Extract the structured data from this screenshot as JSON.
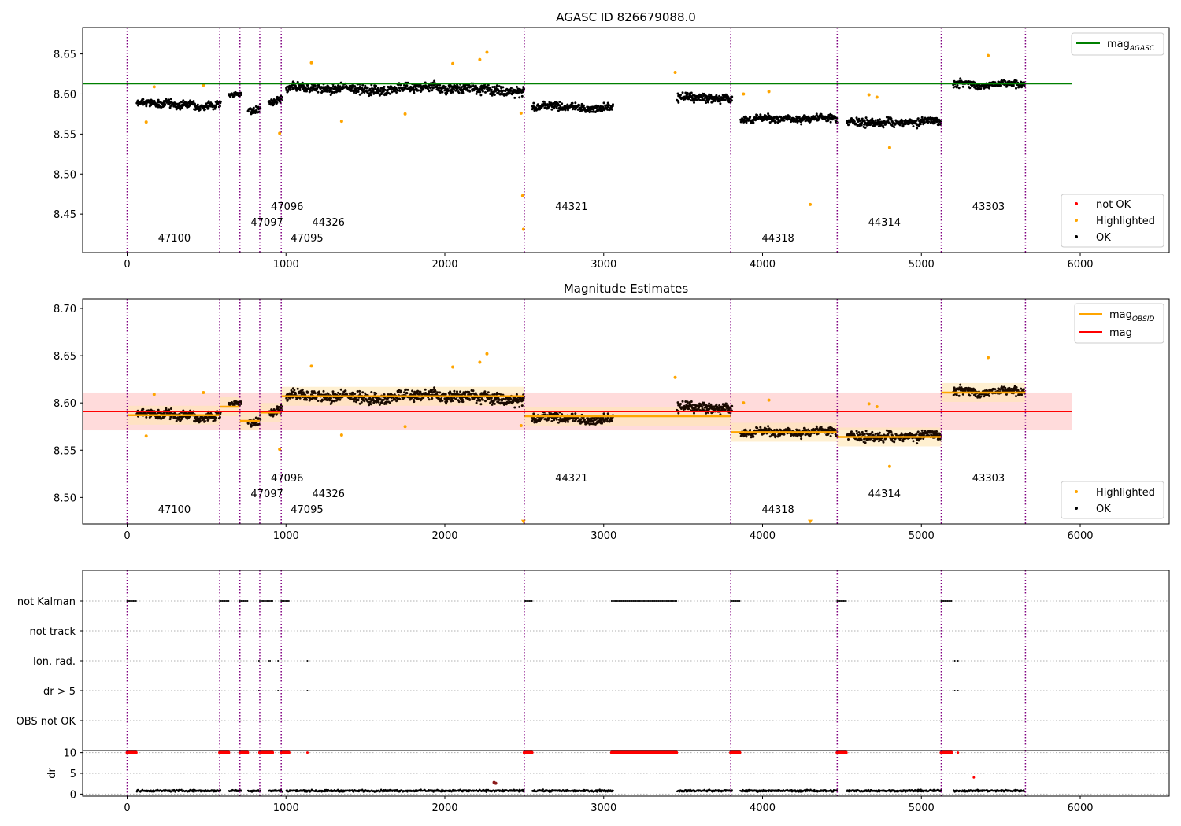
{
  "colors": {
    "ok": "#000000",
    "highlighted": "#ffa500",
    "not_ok": "#ff0000",
    "agasc_line": "#008000",
    "mag_line": "#ff0000",
    "mag_band": "#ffcccc",
    "obsid_line": "#ffa500",
    "obsid_band": "#ffe6b3",
    "obsid_vline": "#800080",
    "grid": "#b0b0b0"
  },
  "chart_data": [
    {
      "type": "scatter",
      "title": "AGASC ID 826679088.0",
      "xlim": [
        -280,
        6560
      ],
      "ylim": [
        8.402,
        8.683
      ],
      "xticks": [
        0,
        1000,
        2000,
        3000,
        4000,
        5000,
        6000
      ],
      "xtick_labels": [
        "0",
        "1000",
        "2000",
        "3000",
        "4000",
        "5000",
        "6000"
      ],
      "yticks": [
        8.45,
        8.5,
        8.55,
        8.6,
        8.65
      ],
      "ytick_labels": [
        "8.45",
        "8.50",
        "8.55",
        "8.60",
        "8.65"
      ],
      "hlines": [
        {
          "y": 8.613,
          "x0": -280,
          "x1": 5950,
          "name": "mag_AGASC"
        }
      ],
      "legends": [
        {
          "position": "upper-right",
          "entries": [
            {
              "label": "mag",
              "sub": "AGASC",
              "marker": "line"
            }
          ]
        },
        {
          "position": "lower-right",
          "entries": [
            {
              "label": "not OK",
              "marker": "dot"
            },
            {
              "label": "Highlighted",
              "marker": "dot"
            },
            {
              "label": "OK",
              "marker": "dot"
            }
          ]
        }
      ],
      "series": [
        {
          "name": "OK",
          "segments": [
            {
              "x0": 60,
              "x1": 590,
              "mean": 8.588,
              "amp": 0.012
            },
            {
              "x0": 640,
              "x1": 720,
              "mean": 8.598,
              "amp": 0.008
            },
            {
              "x0": 760,
              "x1": 840,
              "mean": 8.58,
              "amp": 0.012
            },
            {
              "x0": 890,
              "x1": 975,
              "mean": 8.59,
              "amp": 0.012
            },
            {
              "x0": 1000,
              "x1": 2500,
              "mean": 8.607,
              "amp": 0.016
            },
            {
              "x0": 2550,
              "x1": 3060,
              "mean": 8.582,
              "amp": 0.014
            },
            {
              "x0": 3460,
              "x1": 3810,
              "mean": 8.595,
              "amp": 0.014
            },
            {
              "x0": 3860,
              "x1": 4470,
              "mean": 8.569,
              "amp": 0.012
            },
            {
              "x0": 4530,
              "x1": 5125,
              "mean": 8.565,
              "amp": 0.013
            },
            {
              "x0": 5200,
              "x1": 5650,
              "mean": 8.612,
              "amp": 0.012
            }
          ]
        },
        {
          "name": "Highlighted",
          "points": [
            [
              120,
              8.565
            ],
            [
              170,
              8.609
            ],
            [
              480,
              8.611
            ],
            [
              960,
              8.551
            ],
            [
              1160,
              8.639
            ],
            [
              1350,
              8.566
            ],
            [
              1750,
              8.575
            ],
            [
              2050,
              8.638
            ],
            [
              2220,
              8.643
            ],
            [
              2265,
              8.652
            ],
            [
              2480,
              8.576
            ],
            [
              2490,
              8.473
            ],
            [
              2495,
              8.431
            ],
            [
              3450,
              8.627
            ],
            [
              3880,
              8.6
            ],
            [
              4040,
              8.603
            ],
            [
              4300,
              8.462
            ],
            [
              4670,
              8.599
            ],
            [
              4720,
              8.596
            ],
            [
              4800,
              8.533
            ],
            [
              5420,
              8.648
            ]
          ]
        }
      ],
      "obsids": [
        {
          "id": "47100",
          "x": 0,
          "level": 2
        },
        {
          "id": "47097",
          "x": 583,
          "level": 1
        },
        {
          "id": "47096",
          "x": 710,
          "level": 0
        },
        {
          "id": "47095",
          "x": 835,
          "level": 2
        },
        {
          "id": "44326",
          "x": 970,
          "level": 1
        },
        {
          "id": "44321",
          "x": 2500,
          "level": 0
        },
        {
          "id": "44318",
          "x": 3800,
          "level": 2
        },
        {
          "id": "44314",
          "x": 4470,
          "level": 1
        },
        {
          "id": "43303",
          "x": 5125,
          "level": 0
        }
      ],
      "obsid_boundaries": [
        0,
        583,
        710,
        835,
        970,
        2500,
        3800,
        4470,
        5125,
        5655
      ]
    },
    {
      "type": "scatter",
      "title": "Magnitude Estimates",
      "xlim": [
        -280,
        6560
      ],
      "ylim": [
        8.472,
        8.71
      ],
      "xticks": [
        0,
        1000,
        2000,
        3000,
        4000,
        5000,
        6000
      ],
      "xtick_labels": [
        "0",
        "1000",
        "2000",
        "3000",
        "4000",
        "5000",
        "6000"
      ],
      "yticks": [
        8.5,
        8.55,
        8.6,
        8.65,
        8.7
      ],
      "ytick_labels": [
        "8.50",
        "8.55",
        "8.60",
        "8.65",
        "8.70"
      ],
      "mag": {
        "value": 8.591,
        "band": [
          8.571,
          8.611
        ],
        "x0": -280,
        "x1": 5950
      },
      "mag_obsid": [
        {
          "x0": 0,
          "x1": 583,
          "value": 8.587
        },
        {
          "x0": 583,
          "x1": 710,
          "value": 8.596
        },
        {
          "x0": 710,
          "x1": 835,
          "value": 8.581
        },
        {
          "x0": 835,
          "x1": 970,
          "value": 8.59
        },
        {
          "x0": 970,
          "x1": 2500,
          "value": 8.607
        },
        {
          "x0": 2500,
          "x1": 3800,
          "value": 8.586
        },
        {
          "x0": 3800,
          "x1": 4470,
          "value": 8.569
        },
        {
          "x0": 4470,
          "x1": 5125,
          "value": 8.564
        },
        {
          "x0": 5125,
          "x1": 5655,
          "value": 8.611
        }
      ],
      "legends": [
        {
          "position": "upper-right",
          "entries": [
            {
              "label": "mag",
              "sub": "OBSID",
              "marker": "line"
            },
            {
              "label": "mag",
              "marker": "line"
            }
          ]
        },
        {
          "position": "lower-right",
          "entries": [
            {
              "label": "Highlighted",
              "marker": "dot"
            },
            {
              "label": "OK",
              "marker": "dot"
            }
          ]
        }
      ],
      "series": [
        {
          "name": "OK",
          "same_as_panel": 0
        },
        {
          "name": "Highlighted",
          "points": [
            [
              120,
              8.565
            ],
            [
              170,
              8.609
            ],
            [
              480,
              8.611
            ],
            [
              960,
              8.551
            ],
            [
              1160,
              8.639
            ],
            [
              1350,
              8.566
            ],
            [
              1750,
              8.575
            ],
            [
              2050,
              8.638
            ],
            [
              2220,
              8.643
            ],
            [
              2265,
              8.652
            ],
            [
              2480,
              8.576
            ],
            [
              3450,
              8.627
            ],
            [
              3880,
              8.6
            ],
            [
              4040,
              8.603
            ],
            [
              4670,
              8.599
            ],
            [
              4720,
              8.596
            ],
            [
              4800,
              8.533
            ],
            [
              5420,
              8.648
            ]
          ]
        },
        {
          "name": "Highlighted (off-scale markers)",
          "points": [
            [
              2495,
              8.474
            ],
            [
              4300,
              8.474
            ]
          ]
        }
      ],
      "obsids": [
        {
          "id": "47100",
          "x": 0,
          "level": 2
        },
        {
          "id": "47097",
          "x": 583,
          "level": 1
        },
        {
          "id": "47096",
          "x": 710,
          "level": 0
        },
        {
          "id": "47095",
          "x": 835,
          "level": 2
        },
        {
          "id": "44326",
          "x": 970,
          "level": 1
        },
        {
          "id": "44321",
          "x": 2500,
          "level": 0
        },
        {
          "id": "44318",
          "x": 3800,
          "level": 2
        },
        {
          "id": "44314",
          "x": 4470,
          "level": 1
        },
        {
          "id": "43303",
          "x": 5125,
          "level": 0
        }
      ],
      "obsid_boundaries": [
        0,
        583,
        710,
        835,
        970,
        2500,
        3800,
        4470,
        5125,
        5655
      ]
    },
    {
      "type": "scatter",
      "title": "",
      "xlim": [
        -280,
        6560
      ],
      "categories": [
        "not Kalman",
        "not track",
        "Ion. rad.",
        "dr > 5",
        "OBS not OK"
      ],
      "flags": {
        "not Kalman": [
          [
            0,
            60
          ],
          [
            583,
            640
          ],
          [
            710,
            760
          ],
          [
            835,
            920
          ],
          [
            970,
            1020
          ],
          [
            2500,
            2550
          ],
          [
            3050,
            3460
          ],
          [
            3800,
            3860
          ],
          [
            4470,
            4530
          ],
          [
            5125,
            5190
          ]
        ],
        "not track": [],
        "Ion. rad.": [
          [
            830
          ],
          [
            890
          ],
          [
            900
          ],
          [
            950
          ],
          [
            1135
          ],
          [
            5210
          ],
          [
            5230
          ]
        ],
        "dr > 5": [
          [
            830
          ],
          [
            950
          ],
          [
            1135
          ],
          [
            5210
          ],
          [
            5230
          ]
        ],
        "OBS not OK": []
      },
      "obsid_boundaries": [
        0,
        583,
        710,
        835,
        970,
        2500,
        3800,
        4470,
        5125,
        5655
      ]
    },
    {
      "type": "scatter",
      "title": "",
      "ylabel": "dr",
      "xlim": [
        -280,
        6560
      ],
      "ylim": [
        -0.5,
        10.5
      ],
      "xticks": [
        0,
        1000,
        2000,
        3000,
        4000,
        5000,
        6000
      ],
      "xtick_labels": [
        "0",
        "1000",
        "2000",
        "3000",
        "4000",
        "5000",
        "6000"
      ],
      "yticks": [
        0,
        5,
        10
      ],
      "ytick_labels": [
        "0",
        "5",
        "10"
      ],
      "series": [
        {
          "name": "OK",
          "segments": [
            [
              60,
              590
            ],
            [
              640,
              720
            ],
            [
              760,
              840
            ],
            [
              890,
              975
            ],
            [
              1000,
              2500
            ],
            [
              2550,
              3060
            ],
            [
              3460,
              3810
            ],
            [
              3860,
              4470
            ],
            [
              4530,
              5125
            ],
            [
              5200,
              5650
            ]
          ],
          "typical_value": 0.8
        },
        {
          "name": "not OK (dr clipped at 10)",
          "ranges": [
            [
              0,
              60
            ],
            [
              583,
              640
            ],
            [
              710,
              760
            ],
            [
              835,
              920
            ],
            [
              970,
              1020
            ],
            [
              2500,
              2550
            ],
            [
              3050,
              3460
            ],
            [
              3800,
              3860
            ],
            [
              4470,
              4530
            ],
            [
              5125,
              5190
            ]
          ],
          "value": 10,
          "singles": [
            [
              1135,
              10
            ],
            [
              5230,
              10
            ],
            [
              5330,
              4
            ]
          ]
        },
        {
          "name": "Highlighted",
          "points": [
            [
              2310,
              2.8
            ],
            [
              2320,
              2.6
            ]
          ]
        }
      ],
      "obsid_boundaries": [
        0,
        583,
        710,
        835,
        970,
        2500,
        3800,
        4470,
        5125,
        5655
      ]
    }
  ]
}
